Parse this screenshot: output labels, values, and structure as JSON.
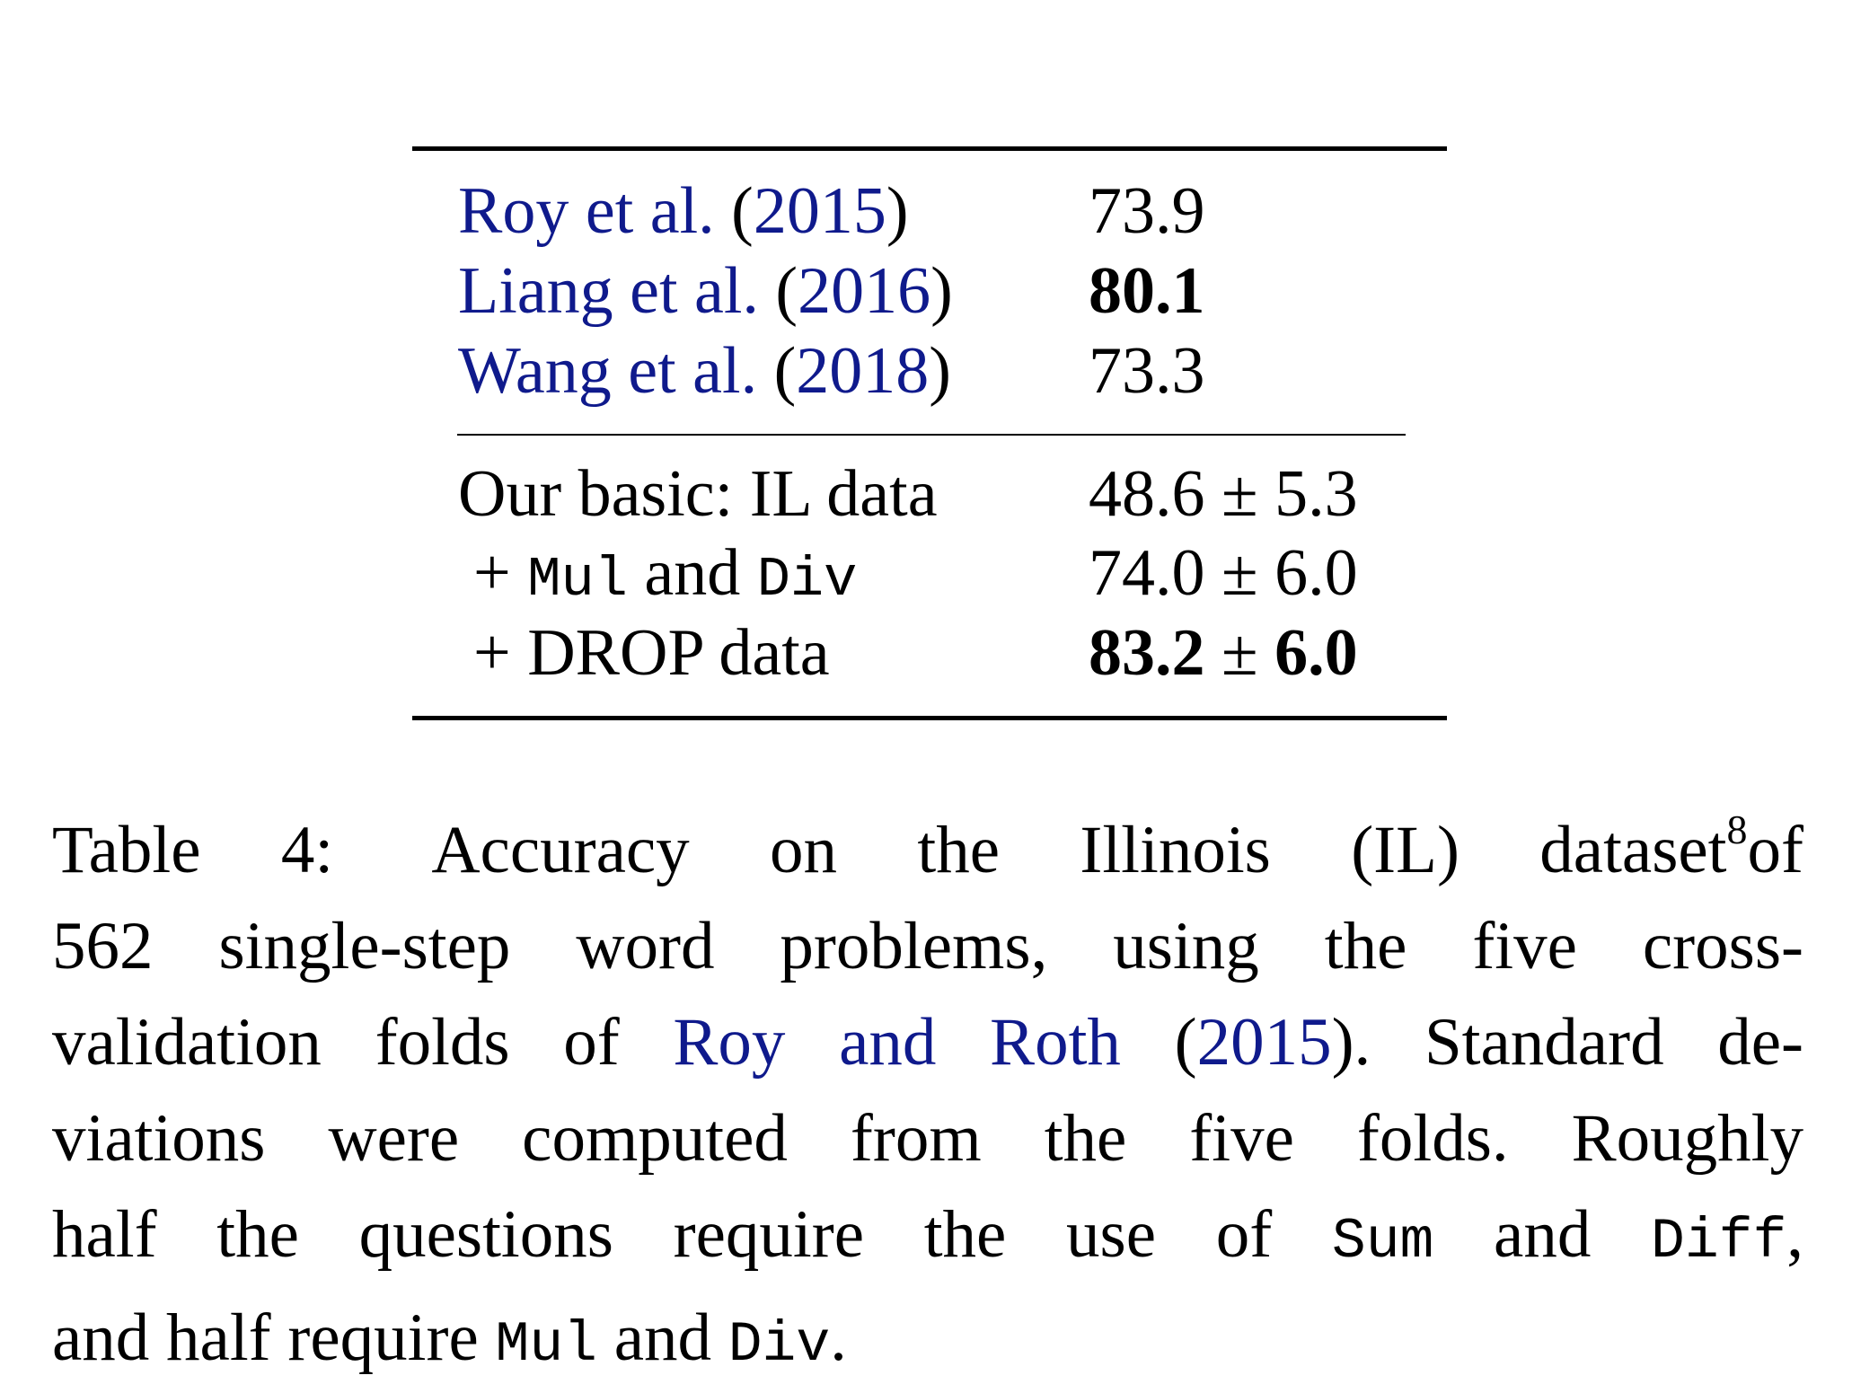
{
  "table": {
    "rows": [
      {
        "author": "Roy et al.",
        "year": "2015",
        "score": "73.9",
        "bold": false
      },
      {
        "author": "Liang et al.",
        "year": "2016",
        "score": "80.1",
        "bold": true
      },
      {
        "author": "Wang et al.",
        "year": "2018",
        "score": "73.3",
        "bold": false
      }
    ],
    "ours": [
      {
        "label": "Our basic: IL data",
        "score": "48.6 ± 5.3"
      },
      {
        "plus": "+",
        "op1": "Mul",
        "and": "and",
        "op2": "Div",
        "score": "74.0 ± 6.0"
      },
      {
        "label": "+ DROP data",
        "score_mean": "83.2",
        "pm": "±",
        "score_std": "6.0"
      }
    ]
  },
  "caption": {
    "label": "Table 4:",
    "line1_text": "Accuracy on the Illinois (IL) dataset",
    "footnote": "8",
    "line1_end": "of",
    "line2": "562 single-step word problems, using the five cross-",
    "line3_pre": "validation folds of",
    "line3_cite": "Roy and Roth",
    "line3_year": "2015",
    "line3_post": ". Standard de-",
    "line4": "viations were computed from the five folds. Roughly",
    "line5_pre": "half the questions require the use of",
    "op_sum": "Sum",
    "and": "and",
    "op_diff": "Diff",
    "line5_post": ",",
    "line6_pre": "and half require",
    "op_mul": "Mul",
    "op_div": "Div",
    "period": "."
  }
}
